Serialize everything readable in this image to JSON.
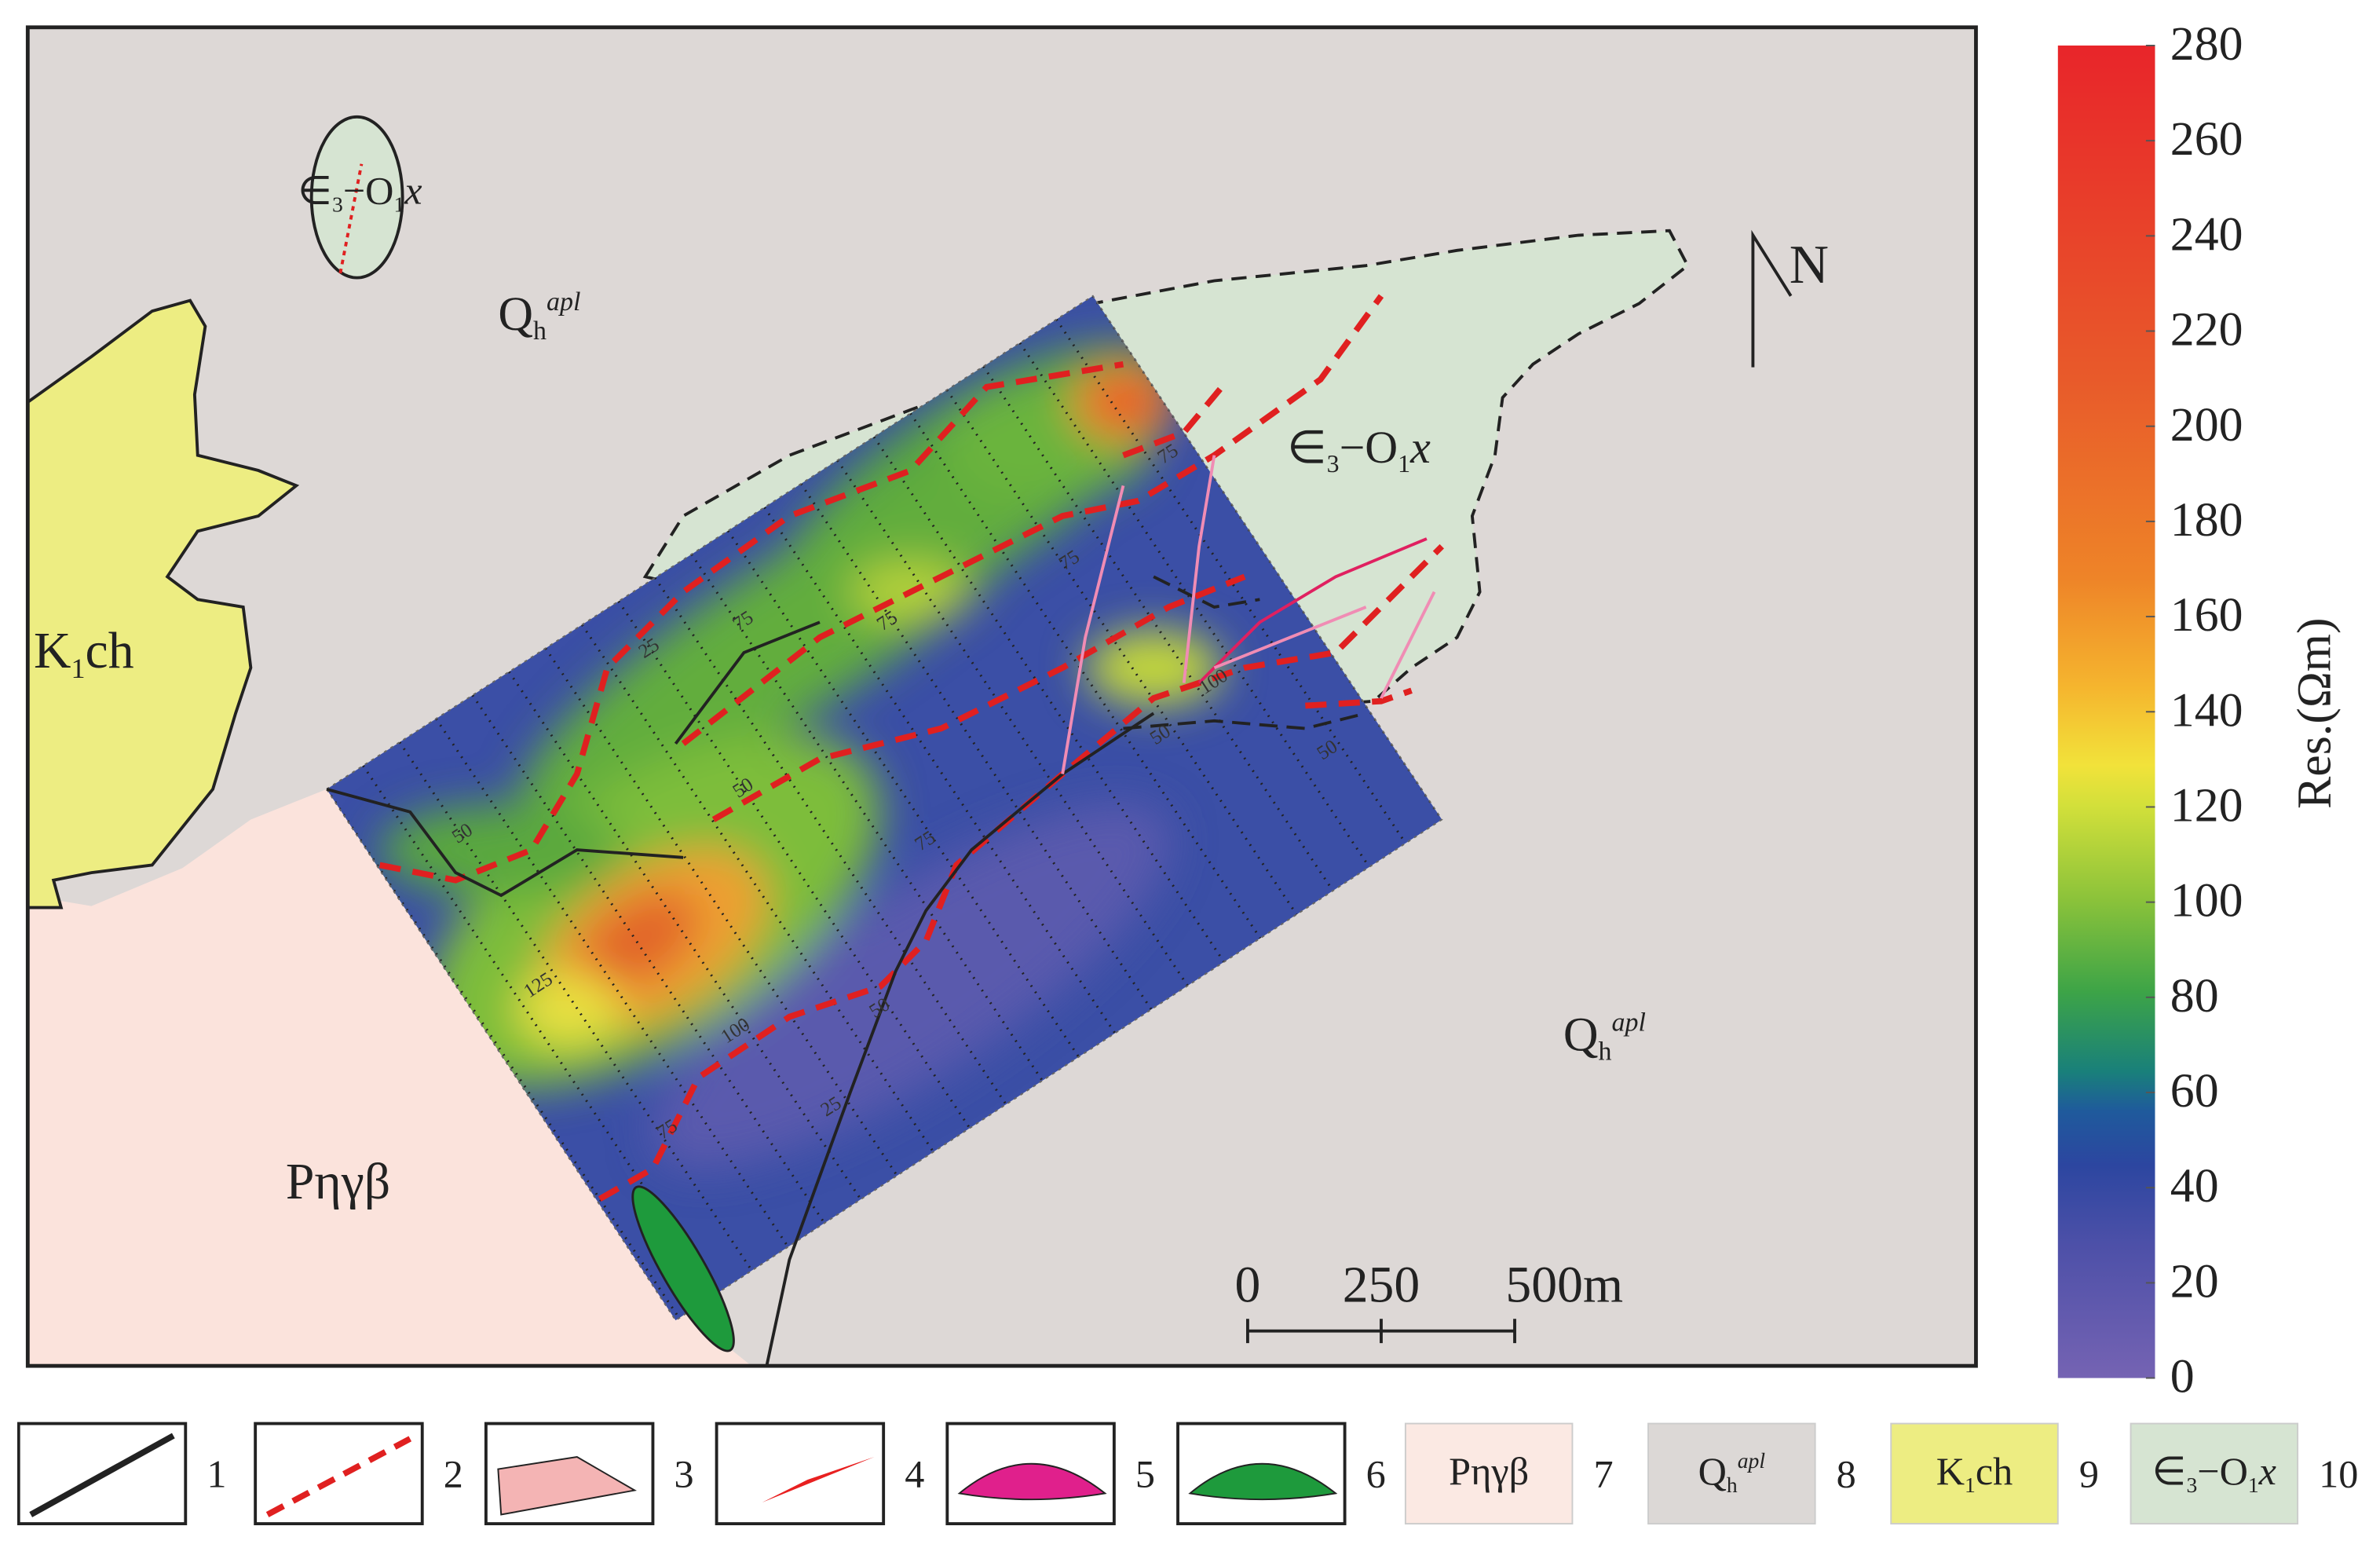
{
  "map_labels": [
    {
      "parts": [
        {
          "text": "Q"
        },
        {
          "text": "h",
          "script": "sub"
        },
        {
          "text": "apl",
          "script": "sup"
        }
      ]
    },
    {
      "parts": [
        {
          "text": "Q"
        },
        {
          "text": "h",
          "script": "sub"
        },
        {
          "text": "apl",
          "script": "sup"
        }
      ]
    },
    {
      "parts": [
        {
          "text": "K"
        },
        {
          "text": "1",
          "script": "sub"
        },
        {
          "text": "ch"
        }
      ]
    },
    {
      "parts": [
        {
          "text": "Pηγβ"
        }
      ]
    },
    {
      "parts": [
        {
          "text": "∈"
        },
        {
          "text": "3",
          "script": "sub"
        },
        {
          "text": "−O"
        },
        {
          "text": "1",
          "script": "sub"
        },
        {
          "text": "x"
        }
      ]
    },
    {
      "parts": [
        {
          "text": "∈"
        },
        {
          "text": "3",
          "script": "sub"
        },
        {
          "text": "−O"
        },
        {
          "text": "1",
          "script": "sub"
        },
        {
          "text": "x"
        }
      ]
    }
  ],
  "contour_labels": [
    50,
    125,
    100,
    75,
    25,
    50,
    75,
    50,
    75,
    75,
    25,
    75,
    75,
    100,
    50,
    50
  ],
  "north_label": "N",
  "scale_bar": {
    "ticks": [
      0,
      250,
      {
        "value": 500,
        "label": "500m"
      }
    ]
  },
  "colorbar": {
    "label": "Res.(Ωm)",
    "lim": [
      0,
      280
    ],
    "ticks": [
      0,
      20,
      40,
      60,
      80,
      100,
      120,
      140,
      160,
      180,
      200,
      220,
      240,
      260,
      280
    ]
  },
  "legend": [
    {
      "number": 1
    },
    {
      "number": 2
    },
    {
      "number": 3
    },
    {
      "number": 4
    },
    {
      "number": 5
    },
    {
      "number": 6
    },
    {
      "number": 7,
      "parts": [
        {
          "text": "Pηγβ"
        }
      ]
    },
    {
      "number": 8,
      "parts": [
        {
          "text": "Q"
        },
        {
          "text": "h",
          "script": "sub"
        },
        {
          "text": "apl",
          "script": "sup"
        }
      ]
    },
    {
      "number": 9,
      "parts": [
        {
          "text": "K"
        },
        {
          "text": "1",
          "script": "sub"
        },
        {
          "text": "ch"
        }
      ]
    },
    {
      "number": 10,
      "parts": [
        {
          "text": "∈"
        },
        {
          "text": "3",
          "script": "sub"
        },
        {
          "text": "−O"
        },
        {
          "text": "1",
          "script": "sub"
        },
        {
          "text": "x"
        }
      ]
    }
  ]
}
